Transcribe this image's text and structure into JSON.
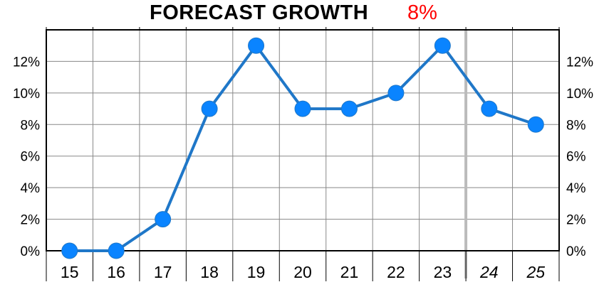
{
  "title": "FORECAST GROWTH",
  "title_value": "8%",
  "colors": {
    "line": "#1f77c8",
    "marker": "#0a84ff",
    "title_value": "#ff0000",
    "grid": "#888888",
    "forecast_divider": "#bbbbbb"
  },
  "chart_data": {
    "type": "line",
    "title": "FORECAST GROWTH",
    "subtitle": "8%",
    "categories": [
      "15",
      "16",
      "17",
      "18",
      "19",
      "20",
      "21",
      "22",
      "23",
      "24",
      "25"
    ],
    "forecast_categories": [
      "24",
      "25"
    ],
    "values": [
      0,
      0,
      2,
      9,
      13,
      9,
      9,
      10,
      13,
      9,
      8
    ],
    "yticks": [
      "0%",
      "2%",
      "4%",
      "6%",
      "8%",
      "10%",
      "12%"
    ],
    "ytick_values": [
      0,
      2,
      4,
      6,
      8,
      10,
      12
    ],
    "ylim": [
      0,
      14
    ],
    "xlabel": "",
    "ylabel": "",
    "grid": true,
    "dual_y_axis": true,
    "unit": "%"
  }
}
